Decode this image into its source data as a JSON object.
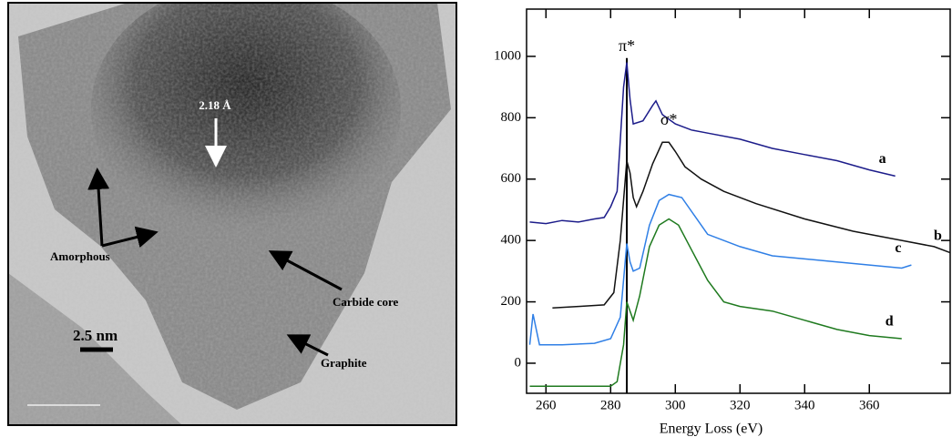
{
  "micrograph": {
    "lattice_label": "2.18 Å",
    "labels": [
      "Amorphous",
      "Carbide core",
      "Graphite"
    ],
    "scale_label": "2.5 nm"
  },
  "chart_data": {
    "type": "line",
    "x_label": "Energy Loss (eV)",
    "xlim": [
      254,
      385
    ],
    "xticks": [
      260,
      280,
      300,
      320,
      340,
      360
    ],
    "ylim": [
      -98,
      1154
    ],
    "yticks": [
      0,
      200,
      400,
      600,
      800,
      1000
    ],
    "annotations": [
      {
        "text": "π*",
        "x": 285,
        "y": 1030
      },
      {
        "text": "σ*",
        "x": 298,
        "y": 790
      }
    ],
    "vline": 285,
    "series": [
      {
        "name": "a",
        "color": "#1c1c8a",
        "x": [
          255,
          260,
          265,
          270,
          275,
          278,
          280,
          282,
          284,
          285,
          286,
          287,
          290,
          293,
          294,
          296,
          300,
          305,
          310,
          320,
          330,
          340,
          350,
          360,
          368
        ],
        "values": [
          460,
          455,
          465,
          460,
          470,
          475,
          510,
          560,
          900,
          980,
          860,
          780,
          790,
          840,
          855,
          810,
          780,
          760,
          750,
          730,
          700,
          680,
          660,
          630,
          610
        ]
      },
      {
        "name": "b",
        "color": "#111111",
        "x": [
          262,
          270,
          278,
          281,
          283,
          285,
          286,
          287,
          288,
          290,
          293,
          296,
          298,
          300,
          303,
          308,
          315,
          325,
          340,
          355,
          370,
          380,
          385
        ],
        "values": [
          180,
          185,
          190,
          230,
          400,
          660,
          620,
          540,
          510,
          560,
          650,
          720,
          720,
          690,
          640,
          600,
          560,
          520,
          470,
          430,
          400,
          380,
          360
        ]
      },
      {
        "name": "c",
        "color": "#2f7fe6",
        "x": [
          255,
          256,
          258,
          265,
          275,
          280,
          283,
          285,
          286,
          287,
          289,
          292,
          295,
          298,
          302,
          306,
          310,
          320,
          330,
          340,
          350,
          360,
          370,
          373
        ],
        "values": [
          60,
          160,
          60,
          60,
          65,
          80,
          150,
          390,
          330,
          300,
          310,
          450,
          530,
          550,
          540,
          480,
          420,
          380,
          350,
          340,
          330,
          320,
          310,
          320
        ]
      },
      {
        "name": "d",
        "color": "#1f7a1f",
        "x": [
          255,
          270,
          280,
          282,
          284,
          285,
          286,
          287,
          289,
          292,
          295,
          298,
          301,
          305,
          310,
          315,
          320,
          330,
          340,
          350,
          360,
          370
        ],
        "values": [
          -75,
          -75,
          -75,
          -60,
          60,
          200,
          170,
          140,
          220,
          380,
          450,
          470,
          450,
          370,
          270,
          200,
          185,
          170,
          140,
          110,
          90,
          80
        ]
      }
    ]
  }
}
